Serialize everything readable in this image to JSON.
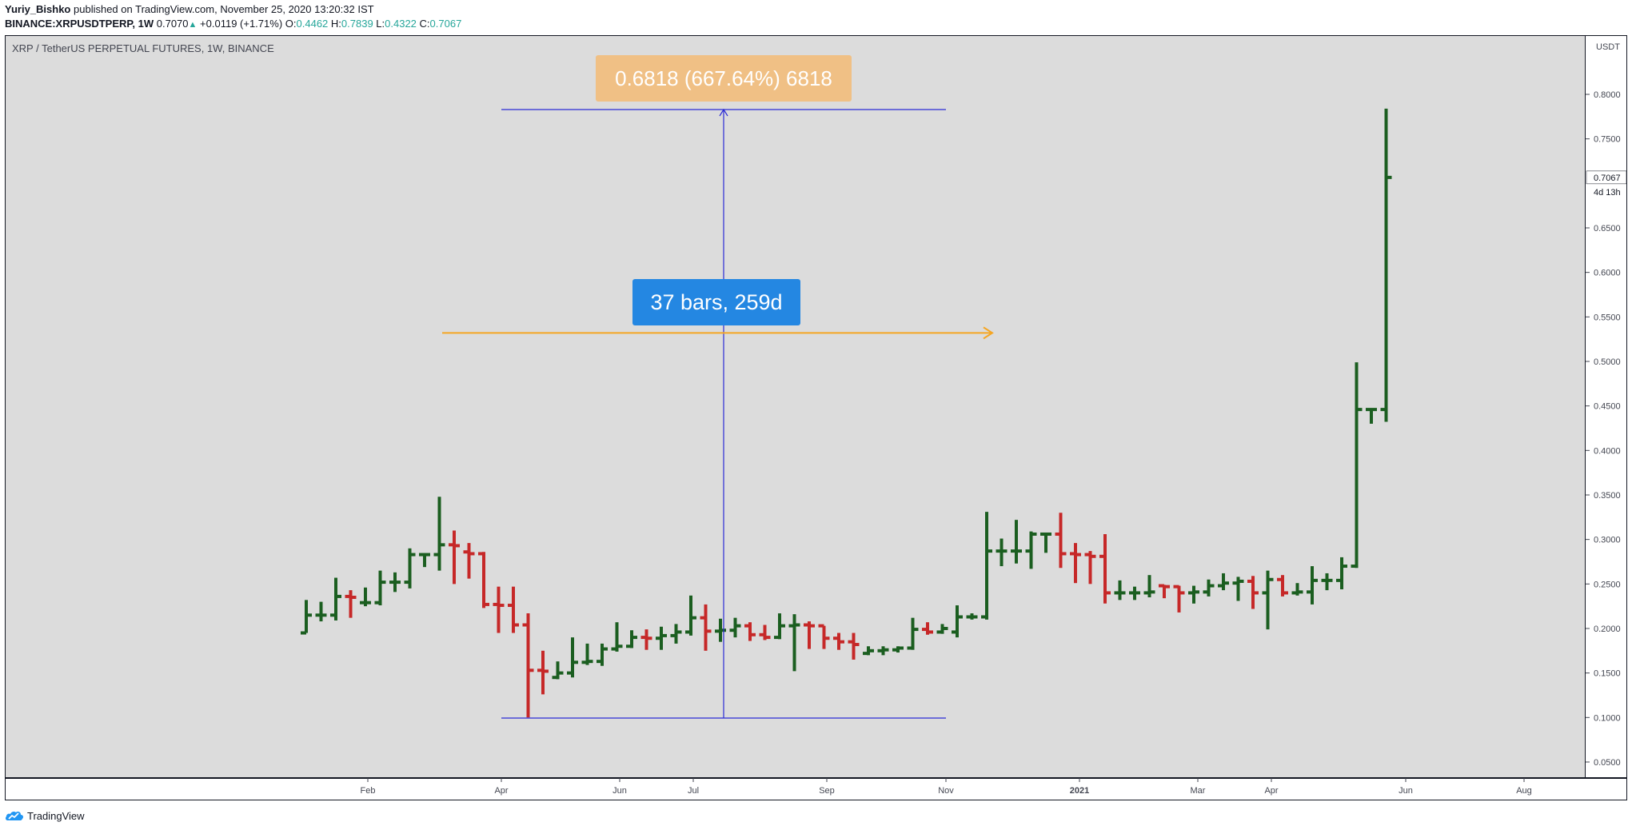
{
  "header": {
    "author": "Yuriy_Bishko",
    "published": "published on TradingView.com, November 25, 2020 13:20:32 IST",
    "symbol_line": "BINANCE:XRPUSDTPERP, 1W",
    "last": "0.7070",
    "change": "+0.0119 (+1.71%)",
    "o_label": "O:",
    "o_value": "0.4462",
    "h_label": "H:",
    "h_value": "0.7839",
    "l_label": "L:",
    "l_value": "0.4322",
    "c_label": "C:",
    "c_value": "0.7067"
  },
  "chart_title": "XRP / TetherUS PERPETUAL FUTURES, 1W, BINANCE",
  "footer": {
    "brand": "TradingView"
  },
  "colors": {
    "up": "#1b5e20",
    "down": "#c62828",
    "measure_line": "#2b2bd6",
    "horizontal_measure": "#f5a623",
    "price_box": "#f0c085",
    "bars_box": "#2487e2",
    "plot_bg": "#dcdcdc"
  },
  "annotations": {
    "price_range": "0.6818 (667.64%) 6818",
    "bar_range": "37 bars, 259d"
  },
  "chart_data": {
    "type": "ohlc",
    "ylim": [
      0.025,
      0.84
    ],
    "currency_label": "USDT",
    "y_ticks": [
      "0.8000",
      "0.7500",
      "0.6500",
      "0.6000",
      "0.5500",
      "0.5000",
      "0.4500",
      "0.4000",
      "0.3500",
      "0.3000",
      "0.2500",
      "0.2000",
      "0.1500",
      "0.1000",
      "0.0500"
    ],
    "last_price_label": "0.7067",
    "countdown_label": "4d 13h",
    "x_ticks": [
      {
        "label": "Feb",
        "week": 5.5,
        "bold": false
      },
      {
        "label": "Apr",
        "week": 14.5,
        "bold": false
      },
      {
        "label": "Jun",
        "week": 22.5,
        "bold": false
      },
      {
        "label": "Jul",
        "week": 27.5,
        "bold": false
      },
      {
        "label": "Sep",
        "week": 36.5,
        "bold": false
      },
      {
        "label": "Nov",
        "week": 44.5,
        "bold": false
      },
      {
        "label": "2021",
        "week": 53.5,
        "bold": true
      },
      {
        "label": "Mar",
        "week": 61.5,
        "bold": false
      },
      {
        "label": "Apr",
        "week": 66.5,
        "bold": false
      },
      {
        "label": "Jun",
        "week": 75.5,
        "bold": false
      },
      {
        "label": "Aug",
        "week": 83.5,
        "bold": false
      }
    ],
    "bars": [
      {
        "o": 0.195,
        "h": 0.232,
        "l": 0.195,
        "c": 0.215
      },
      {
        "o": 0.215,
        "h": 0.23,
        "l": 0.208,
        "c": 0.215
      },
      {
        "o": 0.215,
        "h": 0.257,
        "l": 0.209,
        "c": 0.236
      },
      {
        "o": 0.236,
        "h": 0.243,
        "l": 0.212,
        "c": 0.235
      },
      {
        "o": 0.229,
        "h": 0.246,
        "l": 0.225,
        "c": 0.229
      },
      {
        "o": 0.229,
        "h": 0.265,
        "l": 0.226,
        "c": 0.252
      },
      {
        "o": 0.252,
        "h": 0.263,
        "l": 0.241,
        "c": 0.252
      },
      {
        "o": 0.252,
        "h": 0.29,
        "l": 0.245,
        "c": 0.283
      },
      {
        "o": 0.283,
        "h": 0.283,
        "l": 0.269,
        "c": 0.283
      },
      {
        "o": 0.283,
        "h": 0.348,
        "l": 0.265,
        "c": 0.294
      },
      {
        "o": 0.294,
        "h": 0.31,
        "l": 0.25,
        "c": 0.293
      },
      {
        "o": 0.286,
        "h": 0.296,
        "l": 0.256,
        "c": 0.284
      },
      {
        "o": 0.284,
        "h": 0.286,
        "l": 0.223,
        "c": 0.227
      },
      {
        "o": 0.227,
        "h": 0.247,
        "l": 0.195,
        "c": 0.226
      },
      {
        "o": 0.226,
        "h": 0.247,
        "l": 0.195,
        "c": 0.204
      },
      {
        "o": 0.204,
        "h": 0.217,
        "l": 0.1,
        "c": 0.153
      },
      {
        "o": 0.153,
        "h": 0.175,
        "l": 0.126,
        "c": 0.152
      },
      {
        "o": 0.145,
        "h": 0.163,
        "l": 0.143,
        "c": 0.15
      },
      {
        "o": 0.15,
        "h": 0.19,
        "l": 0.145,
        "c": 0.162
      },
      {
        "o": 0.162,
        "h": 0.183,
        "l": 0.159,
        "c": 0.163
      },
      {
        "o": 0.163,
        "h": 0.183,
        "l": 0.158,
        "c": 0.177
      },
      {
        "o": 0.177,
        "h": 0.207,
        "l": 0.174,
        "c": 0.18
      },
      {
        "o": 0.18,
        "h": 0.198,
        "l": 0.178,
        "c": 0.19
      },
      {
        "o": 0.19,
        "h": 0.199,
        "l": 0.176,
        "c": 0.189
      },
      {
        "o": 0.189,
        "h": 0.202,
        "l": 0.176,
        "c": 0.192
      },
      {
        "o": 0.192,
        "h": 0.205,
        "l": 0.183,
        "c": 0.196
      },
      {
        "o": 0.196,
        "h": 0.237,
        "l": 0.192,
        "c": 0.212
      },
      {
        "o": 0.212,
        "h": 0.227,
        "l": 0.175,
        "c": 0.197
      },
      {
        "o": 0.197,
        "h": 0.211,
        "l": 0.185,
        "c": 0.198
      },
      {
        "o": 0.198,
        "h": 0.212,
        "l": 0.19,
        "c": 0.203
      },
      {
        "o": 0.203,
        "h": 0.207,
        "l": 0.186,
        "c": 0.193
      },
      {
        "o": 0.193,
        "h": 0.204,
        "l": 0.187,
        "c": 0.19
      },
      {
        "o": 0.19,
        "h": 0.217,
        "l": 0.188,
        "c": 0.203
      },
      {
        "o": 0.203,
        "h": 0.216,
        "l": 0.152,
        "c": 0.204
      },
      {
        "o": 0.204,
        "h": 0.208,
        "l": 0.177,
        "c": 0.203
      },
      {
        "o": 0.203,
        "h": 0.203,
        "l": 0.177,
        "c": 0.189
      },
      {
        "o": 0.189,
        "h": 0.195,
        "l": 0.176,
        "c": 0.185
      },
      {
        "o": 0.185,
        "h": 0.195,
        "l": 0.165,
        "c": 0.182
      },
      {
        "o": 0.172,
        "h": 0.18,
        "l": 0.17,
        "c": 0.175
      },
      {
        "o": 0.175,
        "h": 0.18,
        "l": 0.17,
        "c": 0.176
      },
      {
        "o": 0.176,
        "h": 0.18,
        "l": 0.173,
        "c": 0.178
      },
      {
        "o": 0.178,
        "h": 0.212,
        "l": 0.176,
        "c": 0.199
      },
      {
        "o": 0.199,
        "h": 0.207,
        "l": 0.193,
        "c": 0.196
      },
      {
        "o": 0.196,
        "h": 0.205,
        "l": 0.194,
        "c": 0.2
      },
      {
        "o": 0.196,
        "h": 0.226,
        "l": 0.19,
        "c": 0.213
      },
      {
        "o": 0.213,
        "h": 0.217,
        "l": 0.21,
        "c": 0.213
      },
      {
        "o": 0.213,
        "h": 0.331,
        "l": 0.21,
        "c": 0.287
      },
      {
        "o": 0.287,
        "h": 0.301,
        "l": 0.27,
        "c": 0.287
      },
      {
        "o": 0.287,
        "h": 0.322,
        "l": 0.273,
        "c": 0.287
      },
      {
        "o": 0.287,
        "h": 0.309,
        "l": 0.267,
        "c": 0.306
      },
      {
        "o": 0.306,
        "h": 0.306,
        "l": 0.285,
        "c": 0.306
      },
      {
        "o": 0.306,
        "h": 0.33,
        "l": 0.268,
        "c": 0.284
      },
      {
        "o": 0.284,
        "h": 0.296,
        "l": 0.251,
        "c": 0.283
      },
      {
        "o": 0.283,
        "h": 0.287,
        "l": 0.25,
        "c": 0.281
      },
      {
        "o": 0.281,
        "h": 0.306,
        "l": 0.228,
        "c": 0.24
      },
      {
        "o": 0.24,
        "h": 0.254,
        "l": 0.232,
        "c": 0.24
      },
      {
        "o": 0.24,
        "h": 0.247,
        "l": 0.232,
        "c": 0.24
      },
      {
        "o": 0.24,
        "h": 0.26,
        "l": 0.235,
        "c": 0.241
      },
      {
        "o": 0.248,
        "h": 0.249,
        "l": 0.234,
        "c": 0.247
      },
      {
        "o": 0.247,
        "h": 0.248,
        "l": 0.218,
        "c": 0.24
      },
      {
        "o": 0.24,
        "h": 0.248,
        "l": 0.228,
        "c": 0.241
      },
      {
        "o": 0.241,
        "h": 0.255,
        "l": 0.236,
        "c": 0.248
      },
      {
        "o": 0.248,
        "h": 0.262,
        "l": 0.243,
        "c": 0.251
      },
      {
        "o": 0.251,
        "h": 0.258,
        "l": 0.231,
        "c": 0.253
      },
      {
        "o": 0.253,
        "h": 0.259,
        "l": 0.222,
        "c": 0.24
      },
      {
        "o": 0.24,
        "h": 0.265,
        "l": 0.199,
        "c": 0.255
      },
      {
        "o": 0.255,
        "h": 0.26,
        "l": 0.236,
        "c": 0.24
      },
      {
        "o": 0.24,
        "h": 0.251,
        "l": 0.237,
        "c": 0.241
      },
      {
        "o": 0.241,
        "h": 0.27,
        "l": 0.227,
        "c": 0.254
      },
      {
        "o": 0.254,
        "h": 0.262,
        "l": 0.243,
        "c": 0.254
      },
      {
        "o": 0.254,
        "h": 0.28,
        "l": 0.244,
        "c": 0.27
      },
      {
        "o": 0.27,
        "h": 0.499,
        "l": 0.268,
        "c": 0.446
      },
      {
        "o": 0.446,
        "h": 0.446,
        "l": 0.43,
        "c": 0.446
      },
      {
        "o": 0.446,
        "h": 0.7839,
        "l": 0.4322,
        "c": 0.7067
      }
    ],
    "measure": {
      "from_bar": 36.5,
      "to_bar": 73.5,
      "low": 0.101,
      "high": 0.784,
      "left_bar": 22,
      "right_bar": 51,
      "hline_price": 0.532
    }
  }
}
